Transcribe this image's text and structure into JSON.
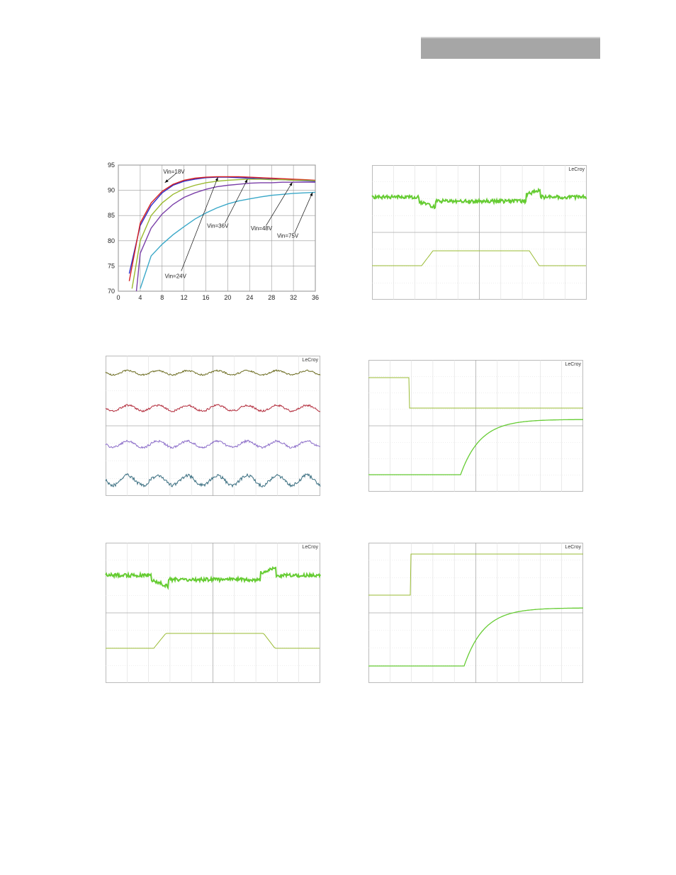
{
  "page": {
    "header_color": "#a6a6a6"
  },
  "scope_brand": "LeCroy",
  "colors": {
    "trace_bright": "#66cc33",
    "trace_dim": "#99bb33",
    "grid": "#c8c8c8"
  },
  "chart_data": [
    {
      "type": "line",
      "title": "",
      "xlabel": "",
      "ylabel": "",
      "xlim": [
        0,
        36
      ],
      "ylim": [
        70,
        95
      ],
      "x_ticks": [
        "0",
        "4",
        "8",
        "12",
        "16",
        "20",
        "24",
        "28",
        "32",
        "36"
      ],
      "y_ticks": [
        "95",
        "90",
        "85",
        "80",
        "75",
        "70"
      ],
      "grid": true,
      "series": [
        {
          "name": "Vin=18V",
          "color": "#2d2dc8",
          "x": [
            2,
            4,
            6,
            8,
            10,
            12,
            14,
            16,
            18,
            20,
            22,
            24,
            26,
            28,
            30,
            32,
            34,
            36
          ],
          "y": [
            73.5,
            83,
            87,
            89.5,
            91,
            91.8,
            92.2,
            92.5,
            92.6,
            92.6,
            92.5,
            92.4,
            92.3,
            92.2,
            92.1,
            92,
            91.9,
            91.8
          ]
        },
        {
          "name": "",
          "color": "#d62020",
          "x": [
            2,
            4,
            6,
            8,
            10,
            12,
            14,
            16,
            18,
            20,
            22,
            24,
            26,
            28,
            30,
            32,
            34,
            36
          ],
          "y": [
            72,
            83.5,
            87.5,
            89.8,
            91.2,
            92,
            92.4,
            92.6,
            92.7,
            92.7,
            92.7,
            92.6,
            92.5,
            92.4,
            92.3,
            92.2,
            92.1,
            92
          ]
        },
        {
          "name": "Vin=24V",
          "color": "#9aba2e",
          "x": [
            2.5,
            4,
            6,
            8,
            10,
            12,
            14,
            16,
            18,
            20,
            22,
            24,
            26,
            28,
            30,
            32,
            34,
            36
          ],
          "y": [
            70.5,
            80,
            85,
            87.5,
            89.2,
            90.3,
            91,
            91.5,
            91.8,
            92,
            92.1,
            92.2,
            92.2,
            92.1,
            92.1,
            92,
            92,
            91.9
          ]
        },
        {
          "name": "Vin=36V",
          "color": "#7a3fa8",
          "x": [
            3.3,
            4,
            6,
            8,
            10,
            12,
            14,
            16,
            18,
            20,
            22,
            24,
            26,
            28,
            30,
            32,
            34,
            36
          ],
          "y": [
            70,
            77.5,
            82.5,
            85.3,
            87.2,
            88.6,
            89.5,
            90.2,
            90.7,
            91,
            91.2,
            91.4,
            91.5,
            91.5,
            91.6,
            91.6,
            91.6,
            91.6
          ]
        },
        {
          "name": "Vin=48V",
          "color": "#333333",
          "x": [],
          "y": []
        },
        {
          "name": "Vin=75V",
          "color": "#3aa8c8",
          "x": [
            4,
            6,
            8,
            10,
            12,
            14,
            16,
            18,
            20,
            22,
            24,
            26,
            28,
            30,
            32,
            34,
            36
          ],
          "y": [
            70.5,
            77,
            79.3,
            81.2,
            82.8,
            84.3,
            85.5,
            86.5,
            87.3,
            87.9,
            88.3,
            88.7,
            89,
            89.2,
            89.4,
            89.5,
            89.6
          ]
        }
      ]
    }
  ]
}
